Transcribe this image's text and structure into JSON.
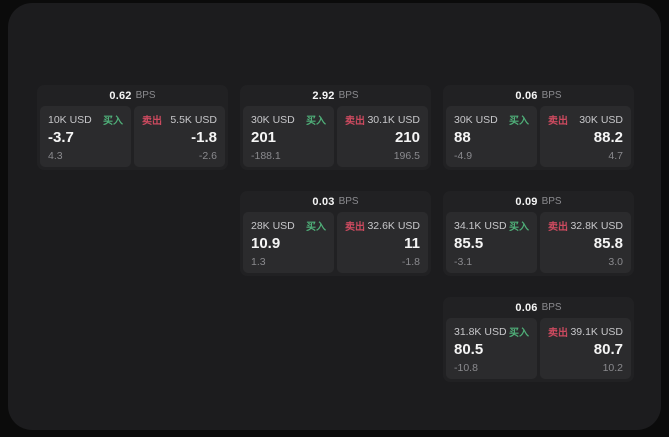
{
  "ui": {
    "bps_suffix": "BPS",
    "buy_label": "买入",
    "sell_label": "卖出"
  },
  "colors": {
    "page_background": "#0b0b0b",
    "panel_background": "#1c1c1e",
    "card_background": "#212123",
    "subpanel_background": "#2b2b2d",
    "buy_green": "#4fae78",
    "sell_red": "#cc4a5f",
    "value_white": "#f5f5f5",
    "muted_gray": "#8a8a8e"
  },
  "cards": [
    {
      "row": 1,
      "col": 1,
      "bps": "0.62",
      "buy": {
        "amount": "10K USD",
        "price": "-3.7",
        "sub": "4.3"
      },
      "sell": {
        "amount": "5.5K USD",
        "price": "-1.8",
        "sub": "-2.6"
      }
    },
    {
      "row": 1,
      "col": 2,
      "bps": "2.92",
      "buy": {
        "amount": "30K USD",
        "price": "201",
        "sub": "-188.1"
      },
      "sell": {
        "amount": "30.1K USD",
        "price": "210",
        "sub": "196.5"
      }
    },
    {
      "row": 1,
      "col": 3,
      "bps": "0.06",
      "buy": {
        "amount": "30K USD",
        "price": "88",
        "sub": "-4.9"
      },
      "sell": {
        "amount": "30K USD",
        "price": "88.2",
        "sub": "4.7"
      }
    },
    {
      "row": 2,
      "col": 2,
      "bps": "0.03",
      "buy": {
        "amount": "28K USD",
        "price": "10.9",
        "sub": "1.3"
      },
      "sell": {
        "amount": "32.6K USD",
        "price": "11",
        "sub": "-1.8"
      }
    },
    {
      "row": 2,
      "col": 3,
      "bps": "0.09",
      "buy": {
        "amount": "34.1K USD",
        "price": "85.5",
        "sub": "-3.1"
      },
      "sell": {
        "amount": "32.8K USD",
        "price": "85.8",
        "sub": "3.0"
      }
    },
    {
      "row": 3,
      "col": 3,
      "bps": "0.06",
      "buy": {
        "amount": "31.8K USD",
        "price": "80.5",
        "sub": "-10.8"
      },
      "sell": {
        "amount": "39.1K USD",
        "price": "80.7",
        "sub": "10.2"
      }
    }
  ]
}
